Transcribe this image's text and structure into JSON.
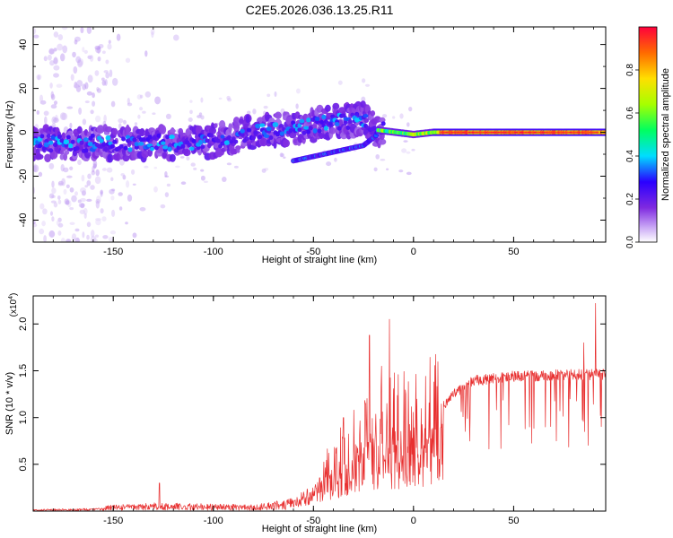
{
  "chart_data": [
    {
      "type": "heatmap",
      "title": "C2E5.2026.036.13.25.R11",
      "xlabel": "Height of straight line (km)",
      "ylabel": "Frequency (Hz)",
      "xlim": [
        -190,
        96
      ],
      "ylim": [
        -50,
        48
      ],
      "xticks": [
        -150,
        -100,
        -50,
        0,
        50
      ],
      "yticks": [
        40,
        20,
        0,
        -20,
        -40
      ],
      "colorbar": {
        "label": "Normalized spectral amplitude",
        "range": [
          0,
          1
        ],
        "ticks": [
          "0.0",
          "0.2",
          "0.4",
          "0.6",
          "0.8"
        ],
        "tick_values": [
          0.0,
          0.2,
          0.4,
          0.6,
          0.8
        ],
        "colors": [
          "#ffffff",
          "#b58cf0",
          "#7f2ae0",
          "#2a00ff",
          "#00ddff",
          "#00ff60",
          "#a6ff00",
          "#ffdf00",
          "#ff6a00",
          "#ff003c"
        ]
      },
      "ridge": [
        {
          "x": -190,
          "f": -5
        },
        {
          "x": -150,
          "f": -5
        },
        {
          "x": -120,
          "f": -5
        },
        {
          "x": -100,
          "f": -4
        },
        {
          "x": -80,
          "f": 0
        },
        {
          "x": -60,
          "f": 2
        },
        {
          "x": -40,
          "f": 5
        },
        {
          "x": -25,
          "f": 6
        },
        {
          "x": -18,
          "f": 1
        },
        {
          "x": 0,
          "f": -1
        },
        {
          "x": 10,
          "f": 0
        },
        {
          "x": 20,
          "f": 0
        },
        {
          "x": 60,
          "f": 0
        },
        {
          "x": 96,
          "f": 0
        }
      ],
      "branch": [
        {
          "x": -60,
          "f": -13
        },
        {
          "x": -40,
          "f": -9
        },
        {
          "x": -25,
          "f": -6
        },
        {
          "x": -18,
          "f": -1
        }
      ]
    },
    {
      "type": "line",
      "xlabel": "Height of straight line (km)",
      "ylabel": "SNR (10 * v/v)",
      "y_multiplier": "(x10",
      "y_multiplier_exp": "4",
      "y_multiplier_close": ")",
      "xlim": [
        -190,
        96
      ],
      "ylim": [
        0,
        2.3
      ],
      "xticks": [
        -150,
        -100,
        -50,
        0,
        50
      ],
      "yticks": [
        "0.5",
        "1.0",
        "1.5",
        "2.0"
      ],
      "ytick_values": [
        0.5,
        1.0,
        1.5,
        2.0
      ],
      "color": "#e83030",
      "envelope": [
        {
          "x": -190,
          "y": 0.02
        },
        {
          "x": -160,
          "y": 0.03
        },
        {
          "x": -150,
          "y": 0.07
        },
        {
          "x": -130,
          "y": 0.09
        },
        {
          "x": -100,
          "y": 0.08
        },
        {
          "x": -80,
          "y": 0.07
        },
        {
          "x": -70,
          "y": 0.1
        },
        {
          "x": -60,
          "y": 0.15
        },
        {
          "x": -50,
          "y": 0.3
        },
        {
          "x": -40,
          "y": 0.5
        },
        {
          "x": -30,
          "y": 0.7
        },
        {
          "x": -20,
          "y": 0.85
        },
        {
          "x": -10,
          "y": 0.95
        },
        {
          "x": 0,
          "y": 0.95
        },
        {
          "x": 10,
          "y": 1.05
        },
        {
          "x": 20,
          "y": 1.3
        },
        {
          "x": 30,
          "y": 1.45
        },
        {
          "x": 50,
          "y": 1.5
        },
        {
          "x": 80,
          "y": 1.52
        },
        {
          "x": 96,
          "y": 1.52
        }
      ],
      "peaks": [
        {
          "x": -127,
          "y": 0.3
        },
        {
          "x": -35,
          "y": 1.0
        },
        {
          "x": -24,
          "y": 1.15
        },
        {
          "x": -22,
          "y": 1.88
        },
        {
          "x": -16,
          "y": 1.55
        },
        {
          "x": -12,
          "y": 2.05
        },
        {
          "x": 85,
          "y": 1.8
        },
        {
          "x": 91,
          "y": 2.22
        }
      ]
    }
  ]
}
